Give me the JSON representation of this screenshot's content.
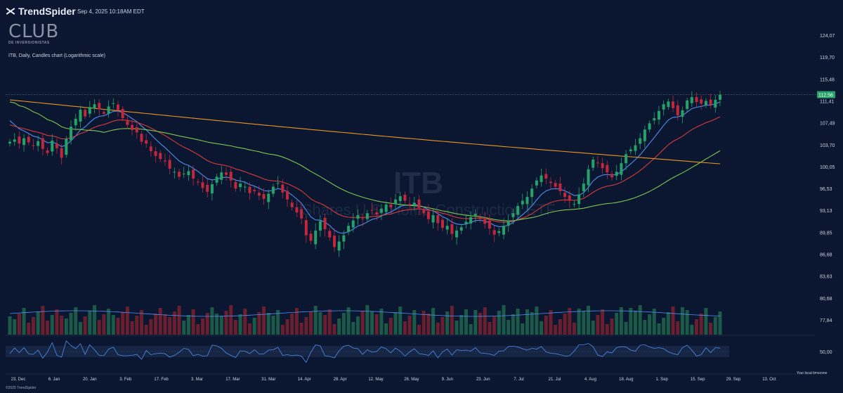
{
  "header": {
    "brand": "TrendSpider",
    "timestamp": "Sep 4, 2025 10:18AM EDT",
    "club_logo": "CLUB",
    "club_sub": "DE INVERSIONISTAS"
  },
  "chart_title": "ITB, Daily, Candles chart (Logarithmic scale)",
  "watermark": {
    "symbol": "ITB",
    "name": "iShares U.S. Home Construction ETF"
  },
  "footer": "©2025 TrendSpider",
  "timezone_label": "Your local timezone",
  "colors": {
    "bg": "#0b1730",
    "up": "#26a269",
    "down": "#c2273c",
    "ema_fast": "#4f8ff0",
    "ema_mid": "#d93a3a",
    "sma_50": "#7ec850",
    "sma_200": "#e8961e"
  },
  "chart_data": [
    {
      "type": "candlestick",
      "symbol": "ITB",
      "interval": "Daily",
      "scale": "logarithmic",
      "x_tick_labels": [
        "23. Dec",
        "6. Jan",
        "20. Jan",
        "3. Feb",
        "17. Feb",
        "3. Mar",
        "17. Mar",
        "31. Mar",
        "14. Apr",
        "28. Apr",
        "12. May",
        "26. May",
        "9. Jun",
        "23. Jun",
        "7. Jul",
        "21. Jul",
        "4. Aug",
        "18. Aug",
        "1. Sep",
        "15. Sep",
        "29. Sep",
        "13. Oct"
      ],
      "y_tick_labels": [
        "124,07",
        "119,70",
        "115,48",
        "111,41",
        "107,49",
        "103,70",
        "100,05",
        "96,53",
        "93,13",
        "89,85",
        "86,68",
        "83,63",
        "80,68",
        "77,84"
      ],
      "last_price": "112,56",
      "close_series": [
        104.2,
        104.6,
        103.9,
        104.8,
        104.1,
        103.5,
        104.3,
        103.0,
        102.3,
        104.4,
        103.1,
        101.5,
        104.7,
        106.8,
        108.2,
        109.8,
        108.6,
        110.3,
        110.8,
        109.9,
        109.1,
        110.4,
        111.0,
        109.7,
        108.3,
        107.1,
        106.2,
        105.8,
        104.2,
        103.9,
        102.6,
        101.8,
        101.3,
        100.9,
        99.7,
        99.2,
        98.4,
        98.9,
        99.3,
        98.1,
        97.5,
        96.6,
        96.0,
        97.2,
        98.4,
        99.1,
        98.7,
        97.8,
        96.5,
        97.3,
        96.8,
        95.8,
        96.1,
        95.4,
        94.9,
        95.7,
        96.8,
        97.4,
        95.9,
        94.8,
        93.6,
        92.8,
        91.9,
        89.4,
        88.6,
        90.1,
        91.5,
        90.3,
        89.1,
        87.7,
        88.5,
        89.4,
        90.8,
        91.6,
        92.4,
        91.8,
        92.7,
        93.1,
        92.5,
        93.4,
        94.0,
        93.6,
        94.8,
        95.3,
        94.6,
        93.9,
        94.3,
        93.5,
        92.7,
        91.8,
        92.4,
        91.2,
        90.5,
        90.8,
        89.6,
        90.1,
        90.6,
        91.4,
        92.1,
        92.6,
        91.8,
        91.1,
        90.4,
        89.5,
        90.0,
        90.8,
        91.6,
        92.7,
        93.8,
        94.6,
        95.2,
        96.5,
        97.8,
        98.6,
        98.1,
        97.4,
        96.8,
        96.1,
        95.2,
        94.6,
        94.1,
        95.6,
        97.3,
        99.6,
        101.2,
        100.6,
        99.8,
        99.1,
        98.3,
        99.2,
        100.6,
        102.1,
        102.9,
        103.6,
        104.8,
        106.3,
        107.4,
        108.3,
        109.6,
        110.8,
        111.3,
        110.1,
        108.8,
        109.7,
        111.5,
        112.1,
        111.2,
        110.9,
        111.4,
        110.7,
        111.6,
        112.56
      ],
      "volume_relative": "bars, no values printed",
      "indicators": [
        "EMA fast (blue)",
        "EMA (red)",
        "SMA 50 (green)",
        "SMA 200 (orange)"
      ],
      "rsi_level_label": "50,00"
    }
  ]
}
